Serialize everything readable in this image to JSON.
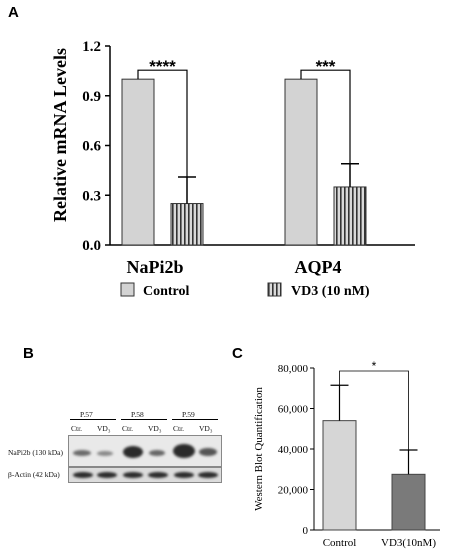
{
  "panels": {
    "a": "A",
    "b": "B",
    "c": "C"
  },
  "chart_a": {
    "type": "bar",
    "ylabel": "Relative mRNA Levels",
    "yticks": [
      "0.0",
      "0.3",
      "0.6",
      "0.9",
      "1.2"
    ],
    "ylim": [
      0,
      1.2
    ],
    "categories": [
      "NaPi2b",
      "AQP4"
    ],
    "series": [
      {
        "name": "Control",
        "values": [
          1.0,
          1.0
        ],
        "errors": [
          0,
          0
        ],
        "color": "#d3d3d3"
      },
      {
        "name": "VD3 (10 nM)",
        "values": [
          0.25,
          0.35
        ],
        "errors": [
          0.16,
          0.14
        ],
        "color": "#8a8a8a"
      }
    ],
    "significance": [
      "****",
      "***"
    ],
    "legend": [
      "Control",
      "VD3 (10 nM)"
    ]
  },
  "blot": {
    "groups": [
      "P.57",
      "P.58",
      "P.59"
    ],
    "lane_labels": [
      "Ctr.",
      "VD₃"
    ],
    "rows": [
      "NaPi2b (130 kDa)",
      "β-Actin (42 kDa)"
    ]
  },
  "chart_c": {
    "type": "bar",
    "ylabel": "Western Blot Quantification",
    "yticks": [
      "0",
      "20,000",
      "40,000",
      "60,000",
      "80,000"
    ],
    "ylim": [
      0,
      80000
    ],
    "categories": [
      "Control",
      "VD3(10nM)"
    ],
    "values": [
      54000,
      27500
    ],
    "errors": [
      17500,
      12000
    ],
    "colors": [
      "#d6d6d6",
      "#7a7a7a"
    ],
    "significance": "*"
  },
  "chart_data": [
    {
      "type": "bar",
      "categories": [
        "NaPi2b",
        "AQP4"
      ],
      "series": [
        {
          "name": "Control",
          "values": [
            1.0,
            1.0
          ]
        },
        {
          "name": "VD3 (10 nM)",
          "values": [
            0.25,
            0.35
          ]
        }
      ],
      "ylabel": "Relative mRNA Levels",
      "ylim": [
        0,
        1.2
      ]
    },
    {
      "type": "bar",
      "categories": [
        "Control",
        "VD3(10nM)"
      ],
      "values": [
        54000,
        27500
      ],
      "ylabel": "Western Blot Quantification",
      "ylim": [
        0,
        80000
      ]
    }
  ]
}
